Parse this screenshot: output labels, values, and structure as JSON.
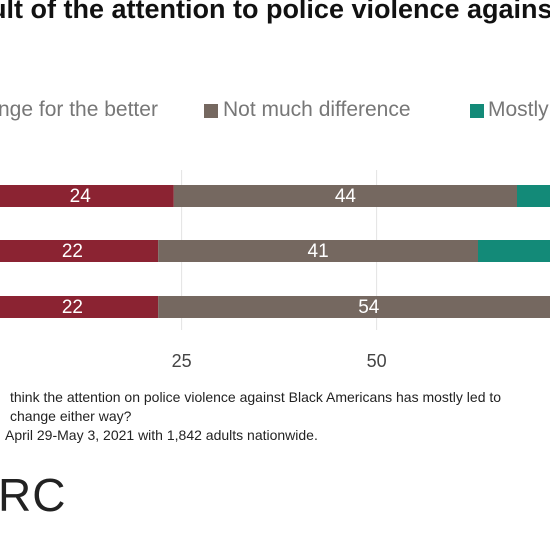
{
  "header": {
    "title": "ult of the attention to police violence against"
  },
  "legend": [
    {
      "label": "nge for the better",
      "color": "#8b2332"
    },
    {
      "label": "Not much difference",
      "color": "#756860"
    },
    {
      "label": "Mostly",
      "color": "#138a78"
    }
  ],
  "chart_data": {
    "type": "bar",
    "orientation": "horizontal",
    "stacked": true,
    "categories": [
      "",
      "",
      ""
    ],
    "series": [
      {
        "name": "nge for the better",
        "values": [
          24,
          22,
          22
        ],
        "color": "#8b2332"
      },
      {
        "name": "Not much difference",
        "values": [
          44,
          41,
          54
        ],
        "color": "#756860"
      },
      {
        "name": "Mostly",
        "values": [
          null,
          null,
          null
        ],
        "color": "#138a78"
      }
    ],
    "xticks": [
      "25",
      "50"
    ],
    "xtick_values": [
      25,
      50
    ],
    "xlim": [
      0,
      100
    ],
    "grid": true
  },
  "notes": {
    "line1": "think the attention on police violence against Black Americans has mostly led to",
    "line2": "change either way?",
    "line3": "April 29-May 3, 2021 with 1,842 adults nationwide."
  },
  "logo": {
    "text": "RC"
  }
}
